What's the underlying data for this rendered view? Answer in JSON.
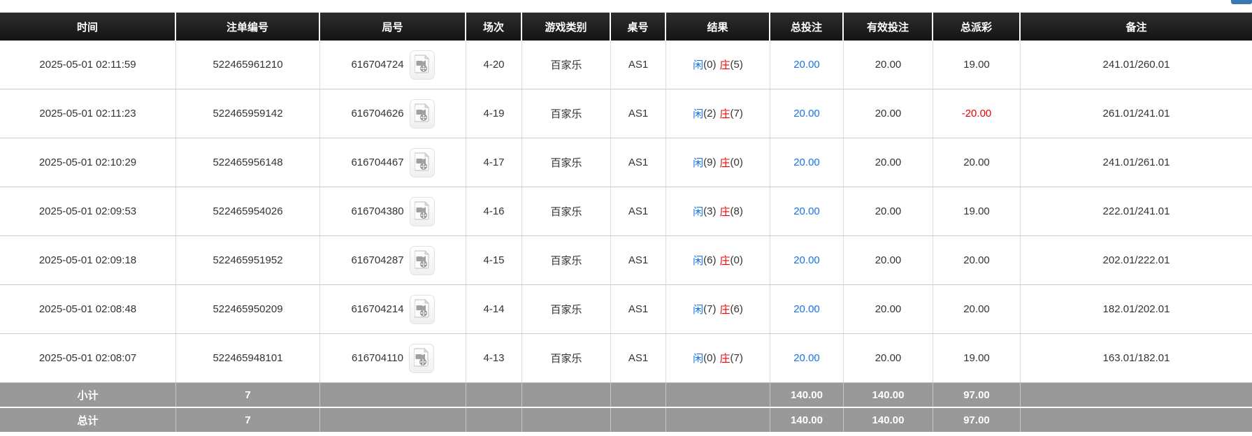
{
  "topbar": {
    "partial_button_color": "#3a78b5"
  },
  "colors": {
    "header_bg_top": "#2e2e2e",
    "header_bg_bottom": "#141414",
    "header_text": "#ffffff",
    "link_blue": "#1673e8",
    "player_blue": "#1673e8",
    "banker_red": "#ee0000",
    "negative_red": "#ee0000",
    "summary_row_bg": "#999999",
    "row_text": "#333333"
  },
  "icons": {
    "round_video": "video-file-icon"
  },
  "table": {
    "columns": [
      "时间",
      "注单编号",
      "局号",
      "场次",
      "游戏类别",
      "桌号",
      "结果",
      "总投注",
      "有效投注",
      "总派彩",
      "备注"
    ],
    "rows": [
      {
        "time": "2025-05-01 02:11:59",
        "bet_no": "522465961210",
        "round_no": "616704724",
        "session": "4-20",
        "game_type": "百家乐",
        "table_no": "AS1",
        "result": {
          "player_label": "闲",
          "player_num": "(0)",
          "banker_label": "庄",
          "banker_num": "(5)"
        },
        "total_bet": "20.00",
        "valid_bet": "20.00",
        "payout": "19.00",
        "remark": "241.01/260.01"
      },
      {
        "time": "2025-05-01 02:11:23",
        "bet_no": "522465959142",
        "round_no": "616704626",
        "session": "4-19",
        "game_type": "百家乐",
        "table_no": "AS1",
        "result": {
          "player_label": "闲",
          "player_num": "(2)",
          "banker_label": "庄",
          "banker_num": "(7)"
        },
        "total_bet": "20.00",
        "valid_bet": "20.00",
        "payout": "-20.00",
        "remark": "261.01/241.01"
      },
      {
        "time": "2025-05-01 02:10:29",
        "bet_no": "522465956148",
        "round_no": "616704467",
        "session": "4-17",
        "game_type": "百家乐",
        "table_no": "AS1",
        "result": {
          "player_label": "闲",
          "player_num": "(9)",
          "banker_label": "庄",
          "banker_num": "(0)"
        },
        "total_bet": "20.00",
        "valid_bet": "20.00",
        "payout": "20.00",
        "remark": "241.01/261.01"
      },
      {
        "time": "2025-05-01 02:09:53",
        "bet_no": "522465954026",
        "round_no": "616704380",
        "session": "4-16",
        "game_type": "百家乐",
        "table_no": "AS1",
        "result": {
          "player_label": "闲",
          "player_num": "(3)",
          "banker_label": "庄",
          "banker_num": "(8)"
        },
        "total_bet": "20.00",
        "valid_bet": "20.00",
        "payout": "19.00",
        "remark": "222.01/241.01"
      },
      {
        "time": "2025-05-01 02:09:18",
        "bet_no": "522465951952",
        "round_no": "616704287",
        "session": "4-15",
        "game_type": "百家乐",
        "table_no": "AS1",
        "result": {
          "player_label": "闲",
          "player_num": "(6)",
          "banker_label": "庄",
          "banker_num": "(0)"
        },
        "total_bet": "20.00",
        "valid_bet": "20.00",
        "payout": "20.00",
        "remark": "202.01/222.01"
      },
      {
        "time": "2025-05-01 02:08:48",
        "bet_no": "522465950209",
        "round_no": "616704214",
        "session": "4-14",
        "game_type": "百家乐",
        "table_no": "AS1",
        "result": {
          "player_label": "闲",
          "player_num": "(7)",
          "banker_label": "庄",
          "banker_num": "(6)"
        },
        "total_bet": "20.00",
        "valid_bet": "20.00",
        "payout": "20.00",
        "remark": "182.01/202.01"
      },
      {
        "time": "2025-05-01 02:08:07",
        "bet_no": "522465948101",
        "round_no": "616704110",
        "session": "4-13",
        "game_type": "百家乐",
        "table_no": "AS1",
        "result": {
          "player_label": "闲",
          "player_num": "(0)",
          "banker_label": "庄",
          "banker_num": "(7)"
        },
        "total_bet": "20.00",
        "valid_bet": "20.00",
        "payout": "19.00",
        "remark": "163.01/182.01"
      }
    ],
    "subtotal": {
      "label": "小计",
      "count": "7",
      "total_bet": "140.00",
      "valid_bet": "140.00",
      "payout": "97.00"
    },
    "total": {
      "label": "总计",
      "count": "7",
      "total_bet": "140.00",
      "valid_bet": "140.00",
      "payout": "97.00"
    }
  }
}
